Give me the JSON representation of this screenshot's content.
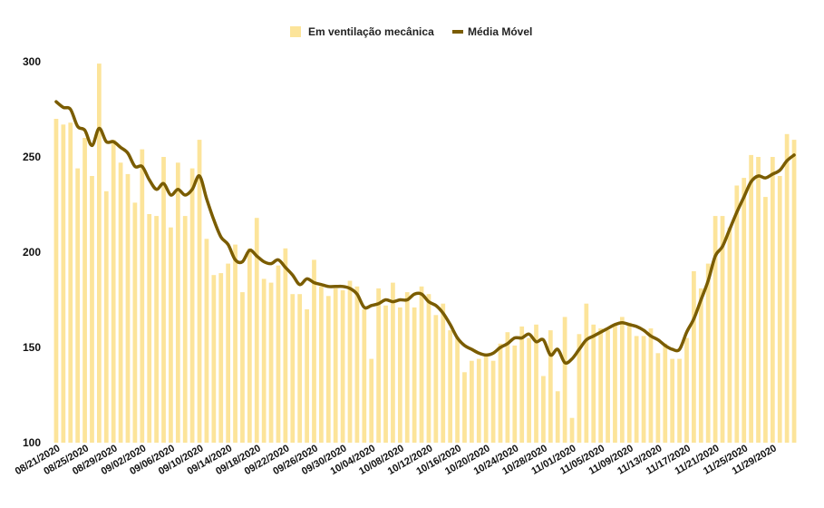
{
  "chart_data": {
    "type": "bar",
    "title": "",
    "xlabel": "",
    "ylabel": "",
    "ylim": [
      100,
      300
    ],
    "yticks": [
      100,
      150,
      200,
      250,
      300
    ],
    "grid": false,
    "legend_position": "top-center",
    "x_tick_labels": [
      "08/21/2020",
      "08/25/2020",
      "08/29/2020",
      "09/02/2020",
      "09/06/2020",
      "09/10/2020",
      "09/14/2020",
      "09/18/2020",
      "09/22/2020",
      "09/26/2020",
      "09/30/2020",
      "10/04/2020",
      "10/08/2020",
      "10/12/2020",
      "10/16/2020",
      "10/20/2020",
      "10/24/2020",
      "10/28/2020",
      "11/01/2020",
      "11/05/2020",
      "11/09/2020",
      "11/13/2020",
      "11/17/2020",
      "11/21/2020",
      "11/25/2020",
      "11/29/2020"
    ],
    "categories": [
      "08/21/2020",
      "08/22/2020",
      "08/23/2020",
      "08/24/2020",
      "08/25/2020",
      "08/26/2020",
      "08/27/2020",
      "08/28/2020",
      "08/29/2020",
      "08/30/2020",
      "08/31/2020",
      "09/01/2020",
      "09/02/2020",
      "09/03/2020",
      "09/04/2020",
      "09/05/2020",
      "09/06/2020",
      "09/07/2020",
      "09/08/2020",
      "09/09/2020",
      "09/10/2020",
      "09/11/2020",
      "09/12/2020",
      "09/13/2020",
      "09/14/2020",
      "09/15/2020",
      "09/16/2020",
      "09/17/2020",
      "09/18/2020",
      "09/19/2020",
      "09/20/2020",
      "09/21/2020",
      "09/22/2020",
      "09/23/2020",
      "09/24/2020",
      "09/25/2020",
      "09/26/2020",
      "09/27/2020",
      "09/28/2020",
      "09/29/2020",
      "09/30/2020",
      "10/01/2020",
      "10/02/2020",
      "10/03/2020",
      "10/04/2020",
      "10/05/2020",
      "10/06/2020",
      "10/07/2020",
      "10/08/2020",
      "10/09/2020",
      "10/10/2020",
      "10/11/2020",
      "10/12/2020",
      "10/13/2020",
      "10/14/2020",
      "10/15/2020",
      "10/16/2020",
      "10/17/2020",
      "10/18/2020",
      "10/19/2020",
      "10/20/2020",
      "10/21/2020",
      "10/22/2020",
      "10/23/2020",
      "10/24/2020",
      "10/25/2020",
      "10/26/2020",
      "10/27/2020",
      "10/28/2020",
      "10/29/2020",
      "10/30/2020",
      "10/31/2020",
      "11/01/2020",
      "11/02/2020",
      "11/03/2020",
      "11/04/2020",
      "11/05/2020",
      "11/06/2020",
      "11/07/2020",
      "11/08/2020",
      "11/09/2020",
      "11/10/2020",
      "11/11/2020",
      "11/12/2020",
      "11/13/2020",
      "11/14/2020",
      "11/15/2020",
      "11/16/2020",
      "11/17/2020",
      "11/18/2020",
      "11/19/2020",
      "11/20/2020",
      "11/21/2020",
      "11/22/2020",
      "11/23/2020",
      "11/24/2020",
      "11/25/2020",
      "11/26/2020",
      "11/27/2020",
      "11/28/2020",
      "11/29/2020",
      "11/30/2020",
      "12/01/2020",
      "12/02/2020"
    ],
    "series": [
      {
        "name": "Em ventilação mecânica",
        "type": "bar",
        "color": "#FCE49A",
        "values": [
          270,
          267,
          268,
          244,
          260,
          240,
          299,
          232,
          259,
          247,
          241,
          226,
          254,
          220,
          219,
          250,
          213,
          247,
          219,
          244,
          259,
          207,
          188,
          189,
          194,
          204,
          179,
          202,
          218,
          186,
          184,
          193,
          202,
          178,
          178,
          170,
          196,
          182,
          177,
          181,
          180,
          185,
          182,
          170,
          144,
          181,
          172,
          184,
          171,
          179,
          171,
          182,
          178,
          167,
          173,
          159,
          155,
          137,
          143,
          144,
          146,
          143,
          152,
          158,
          151,
          161,
          155,
          162,
          135,
          159,
          127,
          166,
          113,
          157,
          173,
          162,
          160,
          159,
          162,
          166,
          163,
          156,
          156,
          160,
          147,
          152,
          144,
          144,
          155,
          190,
          181,
          194,
          219,
          219,
          213,
          235,
          239,
          251,
          250,
          229,
          250,
          240,
          262,
          259
        ]
      },
      {
        "name": "Média Móvel",
        "type": "line",
        "color": "#7A5C00",
        "values": [
          279,
          276,
          275,
          266,
          264,
          256,
          265,
          258,
          258,
          255,
          252,
          245,
          245,
          238,
          233,
          236,
          230,
          233,
          230,
          233,
          240,
          228,
          217,
          208,
          204,
          196,
          195,
          201,
          198,
          195,
          194,
          196,
          192,
          188,
          183,
          186,
          184,
          183,
          182,
          182,
          182,
          181,
          178,
          171,
          172,
          173,
          175,
          174,
          175,
          175,
          178,
          178,
          174,
          172,
          168,
          162,
          155,
          151,
          149,
          147,
          146,
          147,
          150,
          152,
          155,
          155,
          157,
          153,
          154,
          146,
          149,
          142,
          144,
          149,
          154,
          156,
          158,
          160,
          162,
          163,
          162,
          161,
          159,
          156,
          154,
          151,
          149,
          149,
          158,
          165,
          175,
          185,
          198,
          203,
          212,
          221,
          229,
          237,
          240,
          239,
          241,
          243,
          248,
          251
        ]
      }
    ]
  }
}
